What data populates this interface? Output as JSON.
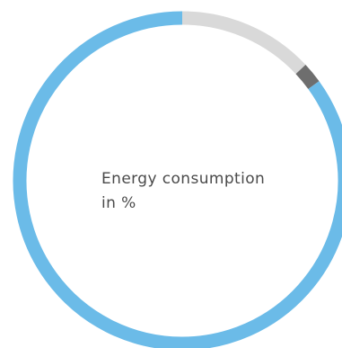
{
  "chart_data": {
    "type": "pie",
    "title": "Energy consumption in %",
    "center_label": {
      "line1": "Energy consumption",
      "line2": "in %"
    },
    "slices": [
      {
        "value": 13,
        "color": "#d9d9d9"
      },
      {
        "value": 2,
        "color": "#6e6e6e"
      },
      {
        "value": 85,
        "color": "#6bbbe8"
      }
    ]
  }
}
